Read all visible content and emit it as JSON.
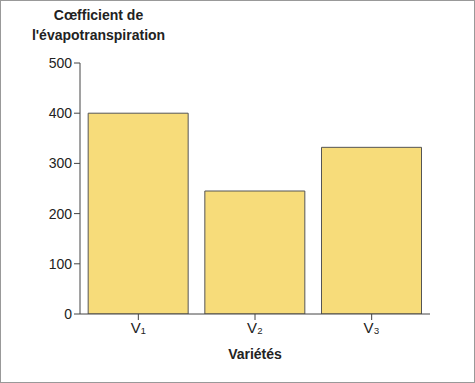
{
  "chart_data": {
    "type": "bar",
    "title": "Cœfficient de l'évapotranspiration",
    "x_label": "Variétés",
    "categories": [
      "V₁",
      "V₂",
      "V₃"
    ],
    "values": [
      400,
      245,
      332
    ],
    "color": "#f7dc7a",
    "ylim": [
      0,
      500
    ],
    "yticks": [
      0,
      100,
      200,
      300,
      400,
      500
    ],
    "grid": false
  }
}
